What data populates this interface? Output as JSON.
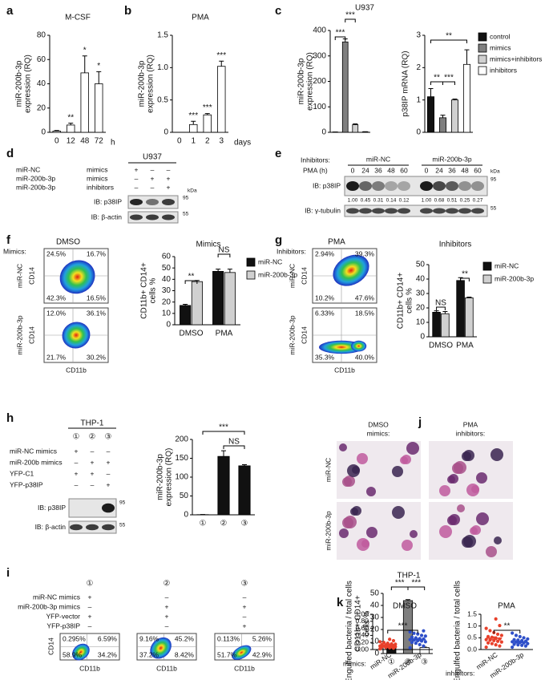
{
  "chart_data": [
    {
      "type": "bar",
      "title": "M-CSF",
      "y_label": [
        "miR-200b-3p",
        "expression (RQ)"
      ],
      "categories": [
        "0",
        "12",
        "48",
        "72"
      ],
      "x_label": "h",
      "values": [
        1,
        6,
        49,
        40
      ],
      "errors": [
        0.5,
        1.5,
        14,
        10
      ],
      "color": "#ffffff",
      "sig": [
        null,
        "**",
        "*",
        "*"
      ],
      "ylim": [
        0,
        80
      ],
      "yticks": [
        0,
        20,
        40,
        60,
        80
      ]
    },
    {
      "type": "bar",
      "title": "PMA",
      "y_label": [
        "miR-200b-3p",
        "expression (RQ)"
      ],
      "categories": [
        "0",
        "1",
        "2",
        "3"
      ],
      "x_label": "days",
      "values": [
        0,
        0.12,
        0.27,
        1.02
      ],
      "errors": [
        0,
        0.05,
        0.02,
        0.08
      ],
      "color": "#ffffff",
      "sig": [
        null,
        "***",
        "***",
        "***"
      ],
      "ylim": [
        0,
        1.5
      ],
      "yticks": [
        0,
        0.5,
        {
          "value": 1,
          "label": "1.0"
        },
        1.5
      ]
    },
    {
      "type": "bar",
      "title": "U937",
      "y_label": [
        "miR-200b-3p",
        "expression (RQ)"
      ],
      "categories": [
        null,
        null,
        null,
        null
      ],
      "values": [
        1,
        355,
        30,
        2
      ],
      "errors": [
        0.2,
        12,
        3,
        0.5
      ],
      "colors": [
        "#111111",
        "#7f7f7f",
        "#d0d0d0",
        "#ffffff"
      ],
      "brackets": [
        "***",
        "***"
      ],
      "ylim": [
        0,
        400
      ],
      "yticks": [
        0,
        100,
        200,
        300,
        400
      ]
    },
    {
      "type": "bar",
      "y_label": [
        "p38IP mRNA (RQ)"
      ],
      "categories": [
        null,
        null,
        null,
        null
      ],
      "values": [
        1.1,
        0.45,
        1.0,
        2.1
      ],
      "errors": [
        0.25,
        0.08,
        0.03,
        0.45
      ],
      "colors": [
        "#111111",
        "#7f7f7f",
        "#d0d0d0",
        "#ffffff"
      ],
      "legend": [
        "control",
        "mimics",
        "mimics+inhibitors",
        "inhibitors"
      ],
      "brackets": [
        "**",
        "***",
        "**"
      ],
      "ylim": [
        0,
        3
      ],
      "yticks": [
        0,
        1,
        2,
        3
      ]
    },
    {
      "type": "bar",
      "title": "Mimics",
      "y_label": [
        "CD11b+ CD14+",
        "cells %"
      ],
      "categories": [
        "DMSO",
        "PMA"
      ],
      "series": [
        {
          "name": "miR-NC",
          "color": "#111111",
          "values": [
            17,
            47
          ],
          "errors": [
            1,
            2
          ]
        },
        {
          "name": "miR-200b-3p",
          "color": "#d0d0d0",
          "values": [
            38,
            46
          ],
          "errors": [
            1,
            3
          ]
        }
      ],
      "brackets": [
        "**",
        "NS"
      ],
      "ylim": [
        0,
        60
      ],
      "yticks": [
        0,
        10,
        20,
        30,
        40,
        50,
        60
      ]
    },
    {
      "type": "bar",
      "title": "Inhibitors",
      "y_label": [
        "CD11b+ CD14+",
        "cells %"
      ],
      "categories": [
        "DMSO",
        "PMA"
      ],
      "series": [
        {
          "name": "miR-NC",
          "color": "#111111",
          "values": [
            17,
            39
          ],
          "errors": [
            1,
            2
          ]
        },
        {
          "name": "miR-200b-3p",
          "color": "#d0d0d0",
          "values": [
            16,
            27
          ],
          "errors": [
            1.5,
            0.5
          ]
        }
      ],
      "brackets": [
        "NS",
        "**"
      ],
      "ylim": [
        0,
        50
      ],
      "yticks": [
        0,
        10,
        20,
        30,
        40,
        50
      ]
    },
    {
      "type": "bar",
      "y_label": [
        "miR-200b-3p",
        "expression (RQ)"
      ],
      "categories": [
        "①",
        "②",
        "③"
      ],
      "values": [
        0.5,
        155,
        130
      ],
      "errors": [
        0.2,
        15,
        3
      ],
      "color": "#111111",
      "brackets": [
        "***",
        "NS"
      ],
      "ylim": [
        0,
        200
      ],
      "yticks": [
        0,
        50,
        100,
        150,
        200
      ]
    },
    {
      "type": "bar",
      "title": "THP-1",
      "y_label": [
        "CD11b+ CD14+",
        "cells %"
      ],
      "categories": [
        "①",
        "②",
        "③"
      ],
      "values": [
        7,
        44,
        5
      ],
      "errors": [
        0.3,
        0.8,
        0.3
      ],
      "colors": [
        "#111111",
        "#7f7f7f",
        "#ffffff"
      ],
      "brackets": [
        "***",
        "***"
      ],
      "ylim": [
        0,
        50
      ],
      "yticks": [
        0,
        10,
        20,
        30,
        40,
        50
      ]
    },
    {
      "type": "strip",
      "title": "DMSO",
      "y_label": [
        "Engulfed bacteria / total cells"
      ],
      "categories": [
        "miR-NC",
        "miR-200b-3p"
      ],
      "x_prefix": "mimics:",
      "values": [
        [
          0.02,
          0.04,
          0.05,
          0.06,
          0.07,
          0.08,
          0.08,
          0.09,
          0.1,
          0.1,
          0.11,
          0.12,
          0.13,
          0.14,
          0.15,
          0.16,
          0.18,
          0.2,
          0.22,
          0.25,
          0.29
        ],
        [
          0.05,
          0.1,
          0.14,
          0.18,
          0.2,
          0.22,
          0.24,
          0.25,
          0.27,
          0.28,
          0.3,
          0.31,
          0.33,
          0.35,
          0.38,
          0.4,
          0.44,
          0.46,
          0.5,
          0.53
        ]
      ],
      "colors": [
        "#e8402a",
        "#2e4fc9"
      ],
      "means": [
        0.12,
        0.28
      ],
      "errors": [
        0.015,
        0.03
      ],
      "brackets": [
        "***"
      ],
      "ylim": [
        0,
        1
      ],
      "yticks": [
        {
          "value": 0,
          "label": "0.00"
        },
        {
          "value": 0.2,
          "label": "0.20"
        },
        {
          "value": 0.4,
          "label": "0.40"
        },
        {
          "value": 0.6,
          "label": "0.60"
        },
        {
          "value": 0.8,
          "label": "0.80"
        },
        {
          "value": 1,
          "label": "1.00"
        }
      ]
    },
    {
      "type": "strip",
      "title": "PMA",
      "y_label": [
        "Engulfed bacteria / total cells"
      ],
      "categories": [
        "miR-NC",
        "miR-200b-3p"
      ],
      "x_prefix": "inhibitors:",
      "values": [
        [
          0.1,
          0.15,
          0.2,
          0.25,
          0.28,
          0.32,
          0.35,
          0.38,
          0.4,
          0.42,
          0.45,
          0.48,
          0.52,
          0.55,
          0.6,
          0.65,
          0.72,
          0.8,
          0.9,
          1.02,
          1.3
        ],
        [
          0.1,
          0.15,
          0.18,
          0.2,
          0.22,
          0.25,
          0.28,
          0.3,
          0.32,
          0.33,
          0.35,
          0.38,
          0.4,
          0.42,
          0.45,
          0.5,
          0.55,
          0.6,
          0.7
        ]
      ],
      "colors": [
        "#e8402a",
        "#2e4fc9"
      ],
      "means": [
        0.48,
        0.32
      ],
      "errors": [
        0.06,
        0.035
      ],
      "brackets": [
        "**"
      ],
      "ylim": [
        0,
        1.5
      ],
      "yticks": [
        {
          "value": 0,
          "label": "0.0"
        },
        0.5,
        {
          "value": 1,
          "label": "1.0"
        },
        1.5
      ]
    }
  ],
  "panels": {
    "letters": [
      "a",
      "b",
      "c",
      "d",
      "e",
      "f",
      "g",
      "h",
      "i",
      "j",
      "k"
    ],
    "d": {
      "cell_line": "U937",
      "rows": [
        {
          "label": "miR-NC",
          "kind": "mimics",
          "signs": [
            "+",
            "–",
            "–"
          ]
        },
        {
          "label": "miR-200b-3p",
          "kind": "mimics",
          "signs": [
            "–",
            "+",
            "+"
          ]
        },
        {
          "label": "miR-200b-3p",
          "kind": "inhibitors",
          "signs": [
            "–",
            "–",
            "+"
          ]
        }
      ],
      "kda": "kDa",
      "blots": [
        {
          "label": "IB: p38IP",
          "marker": "95"
        },
        {
          "label": "IB: β-actin",
          "marker": "55"
        }
      ]
    },
    "e": {
      "inhibitors_label": "Inhibitors:",
      "groups": [
        "miR-NC",
        "miR-200b-3p"
      ],
      "time_label": "PMA (h)",
      "times": [
        0,
        24,
        36,
        48,
        60,
        0,
        24,
        36,
        48,
        60
      ],
      "quant": [
        "1.00",
        "0.45",
        "0.31",
        "0.14",
        "0.12",
        "1.00",
        "0.68",
        "0.51",
        "0.25",
        "0.27"
      ],
      "kda": "kDa",
      "blots": [
        {
          "label": "IB: p38IP",
          "marker": "95"
        },
        {
          "label": "IB: γ-tubulin",
          "marker": "55"
        }
      ]
    },
    "f": {
      "title": "DMSO",
      "row_prefix": "Mimics:",
      "y_axis": "CD14",
      "x_axis": "CD11b",
      "plots": [
        {
          "row": "miR-NC",
          "quadrants": [
            "24.5%",
            "16.7%",
            "42.3%",
            "16.5%"
          ]
        },
        {
          "row": "miR-200b-3p",
          "quadrants": [
            "12.0%",
            "36.1%",
            "21.7%",
            "30.2%"
          ]
        }
      ]
    },
    "g": {
      "title": "PMA",
      "row_prefix": "Inhibitors:",
      "y_axis": "CD14",
      "x_axis": "CD11b",
      "plots": [
        {
          "row": "miR-NC",
          "quadrants": [
            "2.94%",
            "39.3%",
            "10.2%",
            "47.6%"
          ]
        },
        {
          "row": "miR-200b-3p",
          "quadrants": [
            "6.33%",
            "18.5%",
            "35.3%",
            "40.0%"
          ]
        }
      ]
    },
    "h": {
      "cell_line": "THP-1",
      "lanes": [
        "①",
        "②",
        "③"
      ],
      "rows": [
        {
          "label": "miR-NC mimics",
          "signs": [
            "+",
            "–",
            "–"
          ]
        },
        {
          "label": "miR-200b mimics",
          "signs": [
            "–",
            "+",
            "+"
          ]
        },
        {
          "label": "YFP-C1",
          "signs": [
            "+",
            "+",
            "–"
          ]
        },
        {
          "label": "YFP-p38IP",
          "signs": [
            "–",
            "–",
            "+"
          ]
        }
      ],
      "blots": [
        {
          "label": "IB: p38IP",
          "marker": "95"
        },
        {
          "label": "IB: β-actin",
          "marker": "55"
        }
      ]
    },
    "i": {
      "lanes": [
        "①",
        "②",
        "③"
      ],
      "rows": [
        {
          "label": "miR-NC mimics",
          "signs": [
            "+",
            "–",
            "–"
          ]
        },
        {
          "label": "miR-200b-3p mimics",
          "signs": [
            "–",
            "+",
            "+"
          ]
        },
        {
          "label": "YFP-vector",
          "signs": [
            "+",
            "+",
            "–"
          ]
        },
        {
          "label": "YFP-p38IP",
          "signs": [
            "–",
            "–",
            "+"
          ]
        }
      ],
      "y_axis": "CD14",
      "x_axis": "CD11b",
      "plots": [
        {
          "quadrants": [
            "0.295%",
            "6.59%",
            "58.9%",
            "34.2%"
          ]
        },
        {
          "quadrants": [
            "9.16%",
            "45.2%",
            "37.2%",
            "8.42%"
          ]
        },
        {
          "quadrants": [
            "0.113%",
            "5.26%",
            "51.7%",
            "42.9%"
          ]
        }
      ]
    },
    "j": {
      "columns": [
        [
          "DMSO",
          "mimics:"
        ],
        [
          "PMA",
          "inhibitors:"
        ]
      ],
      "rows": [
        "miR-NC",
        "miR-200b-3p"
      ]
    }
  }
}
